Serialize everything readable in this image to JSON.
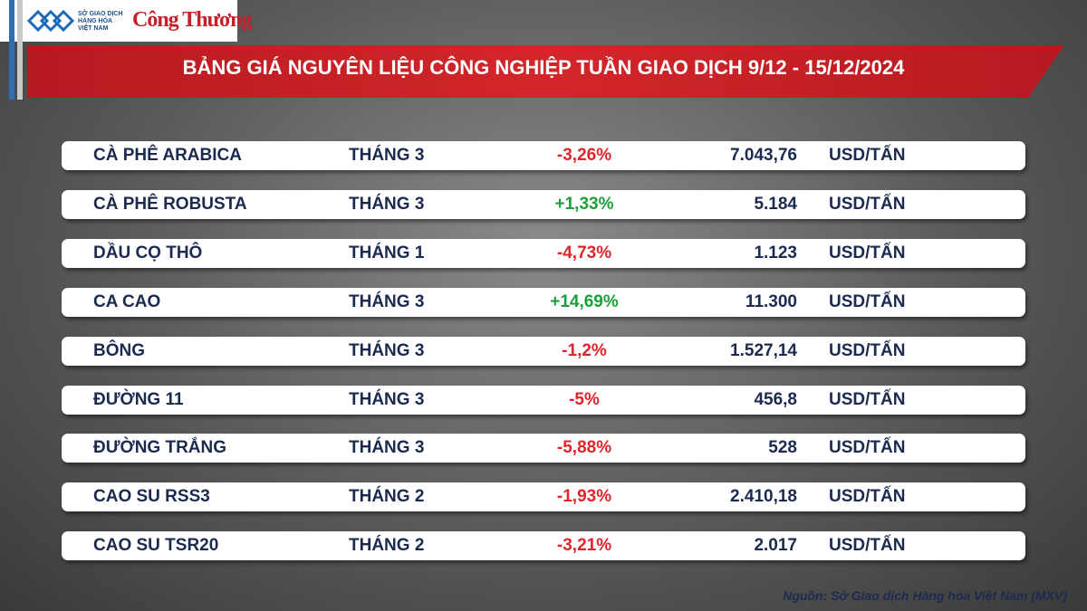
{
  "header": {
    "logo_text": [
      "SỞ GIAO DỊCH",
      "HÀNG HÓA",
      "VIỆT NAM"
    ],
    "brand": "Công Thương"
  },
  "title": "BẢNG GIÁ NGUYÊN LIỆU CÔNG NGHIỆP TUẦN GIAO DỊCH 9/12 - 15/12/2024",
  "table": {
    "rows": [
      [
        "CÀ PHÊ ARABICA",
        "THÁNG 3",
        "-3,26%",
        "7.043,76",
        "USD/TẤN"
      ],
      [
        "CÀ PHÊ ROBUSTA",
        "THÁNG 3",
        "+1,33%",
        "5.184",
        "USD/TẤN"
      ],
      [
        "DẦU CỌ THÔ",
        "THÁNG 1",
        "-4,73%",
        "1.123",
        "USD/TẤN"
      ],
      [
        "CA CAO",
        "THÁNG 3",
        "+14,69%",
        "11.300",
        "USD/TẤN"
      ],
      [
        "BÔNG",
        "THÁNG 3",
        "-1,2%",
        "1.527,14",
        "USD/TẤN"
      ],
      [
        "ĐƯỜNG 11",
        "THÁNG 3",
        "-5%",
        "456,8",
        "USD/TẤN"
      ],
      [
        "ĐƯỜNG TRẮNG",
        "THÁNG 3",
        "-5,88%",
        "528",
        "USD/TẤN"
      ],
      [
        "CAO SU RSS3",
        "THÁNG 2",
        "-1,93%",
        "2.410,18",
        "USD/TẤN"
      ],
      [
        "CAO SU TSR20",
        "THÁNG 2",
        "-3,21%",
        "2.017",
        "USD/TẤN"
      ]
    ]
  },
  "source": "Nguồn: Sở Giao dịch Hàng hóa Việt Nam (MXV)"
}
